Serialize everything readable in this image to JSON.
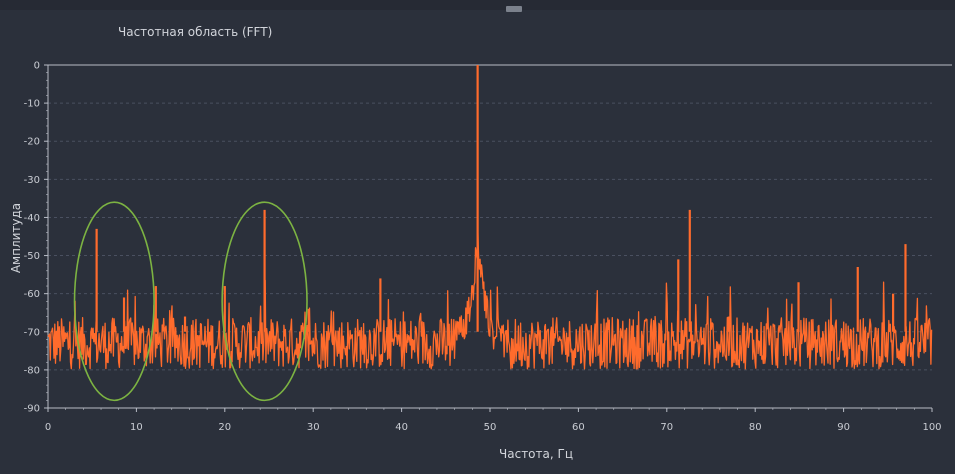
{
  "colors": {
    "background": "#2b303b",
    "series": "#ff6b2c",
    "annotation": "#7cb342",
    "grid": "#4a5060",
    "axis": "#b8bcc6"
  },
  "chart_data": {
    "type": "line",
    "title": "Частотная область (FFT)",
    "xlabel": "Частота, Гц",
    "ylabel": "Амплитуда",
    "xlim": [
      0,
      100
    ],
    "ylim": [
      -90,
      0
    ],
    "xticks": [
      0,
      10,
      20,
      30,
      40,
      50,
      60,
      70,
      80,
      90,
      100
    ],
    "yticks": [
      0,
      -10,
      -20,
      -30,
      -40,
      -50,
      -60,
      -70,
      -80,
      -90
    ],
    "grid": true,
    "legend": "none",
    "series": [
      {
        "noise_floor": -73,
        "noise_range": [
          -80,
          -62
        ],
        "peaks": [
          {
            "x": 5.5,
            "y": -43
          },
          {
            "x": 8.6,
            "y": -61
          },
          {
            "x": 12.2,
            "y": -58
          },
          {
            "x": 15.5,
            "y": -66
          },
          {
            "x": 20.0,
            "y": -58
          },
          {
            "x": 24.5,
            "y": -38
          },
          {
            "x": 29.5,
            "y": -64
          },
          {
            "x": 37.6,
            "y": -56
          },
          {
            "x": 48.6,
            "y": 0
          },
          {
            "x": 71.3,
            "y": -51
          },
          {
            "x": 72.6,
            "y": -38
          },
          {
            "x": 77.0,
            "y": -66
          },
          {
            "x": 84.9,
            "y": -57
          },
          {
            "x": 91.6,
            "y": -53
          },
          {
            "x": 95.6,
            "y": -60
          },
          {
            "x": 97.0,
            "y": -47
          }
        ]
      }
    ],
    "annotations": [
      {
        "shape": "ellipse",
        "center": [
          7.5,
          -62
        ],
        "x_halfwidth": 4.5,
        "y_halfwidth": 26
      },
      {
        "shape": "ellipse",
        "center": [
          24.5,
          -62
        ],
        "x_halfwidth": 4.8,
        "y_halfwidth": 26
      }
    ]
  }
}
